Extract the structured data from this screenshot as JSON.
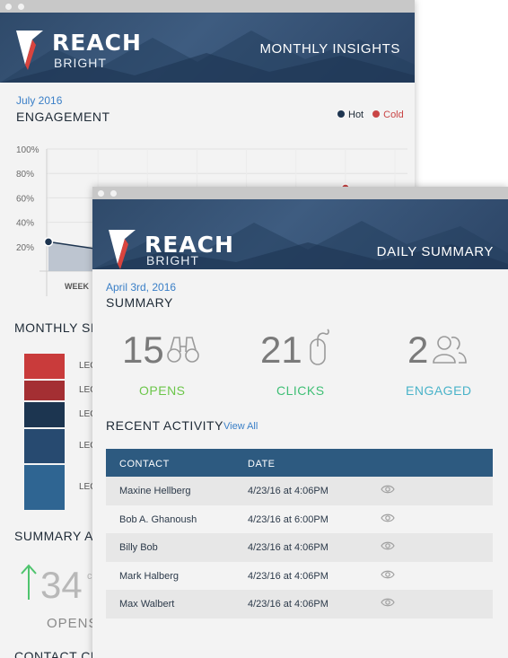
{
  "monthly_window": {
    "brand": {
      "name": "REACH",
      "tagline": "BRIGHT"
    },
    "header_title": "MONTHLY INSIGHTS",
    "period": "July 2016",
    "engagement_title": "ENGAGEMENT",
    "legend": {
      "hot": "Hot",
      "cold": "Cold"
    },
    "colors": {
      "hot": "#1e3550",
      "cold": "#c94545",
      "area_hot": "#b7c0cc",
      "area_cold": "#e8a9a9",
      "area_blue": "#a9bfd3"
    },
    "chart_data": {
      "type": "area",
      "yticks": [
        "100%",
        "80%",
        "60%",
        "40%",
        "20%"
      ],
      "ylim": [
        0,
        100
      ],
      "xtick_visible": "WEEK",
      "series": [
        {
          "name": "Hot",
          "x": [
            0,
            1,
            2,
            3,
            4,
            5,
            6,
            7
          ],
          "y": [
            24,
            18,
            15,
            12,
            10,
            32,
            68,
            59
          ]
        }
      ],
      "markers": [
        {
          "series": "Hot",
          "x": 0,
          "y": 24
        },
        {
          "series": "Cold",
          "x": 6,
          "y": 68
        },
        {
          "series": "Hot",
          "x": 7,
          "y": 59
        }
      ]
    },
    "monthly_section_title": "MONTHLY SI",
    "monthly_bars": [
      {
        "label": "LEC",
        "color": "#c93b3b"
      },
      {
        "label": "LEC",
        "color": "#a42f33"
      },
      {
        "label": "LEC",
        "color": "#1c3550"
      },
      {
        "label": "LEC",
        "color": "#274a70"
      },
      {
        "label": "LEC",
        "color": "#2f6592"
      }
    ],
    "summary_title": "SUMMARY A",
    "summary_value": "34",
    "summary_suffix": "c",
    "summary_label": "OPENS",
    "contact_changes_title": "CONTACT CHANGES THIS MONTH"
  },
  "daily_window": {
    "brand": {
      "name": "REACH",
      "tagline": "BRIGHT"
    },
    "header_title": "DAILY SUMMARY",
    "date": "April 3rd, 2016",
    "summary_title": "SUMMARY",
    "stats": [
      {
        "value": "15",
        "label": "OPENS",
        "icon": "binoculars-icon",
        "color": "#6cc64a"
      },
      {
        "value": "21",
        "label": "CLICKS",
        "icon": "mouse-icon",
        "color": "#3fbf75"
      },
      {
        "value": "2",
        "label": "ENGAGED",
        "icon": "users-icon",
        "color": "#4ab3c9"
      }
    ],
    "recent_activity_title": "RECENT ACTIVITY",
    "view_all": "View All",
    "table": {
      "headers": [
        "CONTACT",
        "DATE"
      ],
      "rows": [
        {
          "contact": "Maxine Hellberg",
          "date": "4/23/16 at 4:06PM"
        },
        {
          "contact": "Bob A. Ghanoush",
          "date": "4/23/16 at 6:00PM"
        },
        {
          "contact": "Billy Bob",
          "date": "4/23/16 at 4:06PM"
        },
        {
          "contact": "Mark Halberg",
          "date": "4/23/16 at 4:06PM"
        },
        {
          "contact": "Max Walbert",
          "date": "4/23/16 at 4:06PM"
        }
      ]
    }
  }
}
